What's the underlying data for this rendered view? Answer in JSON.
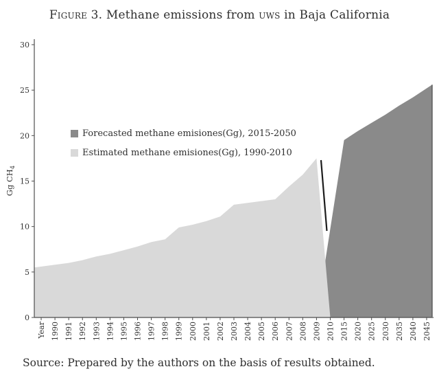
{
  "header": {
    "sc1": "Figure 3.",
    "mid": " Methane emissions from ",
    "sc2": "uws",
    "end": " in Baja California"
  },
  "source_note": "Source: Prepared by the authors on the basis of results obtained.",
  "legend": {
    "items": [
      {
        "label": "Forecasted methane emisiones(Gg), 2015-2050",
        "color": "#8a8a8a"
      },
      {
        "label": "Estimated methane emisiones(Gg), 1990-2010",
        "color": "#d9d9d9"
      }
    ]
  },
  "chart_data": {
    "type": "area",
    "title": "Figure 3. Methane emissions from UWS in Baja California",
    "xlabel": "Year",
    "ylabel": "Gg CH4",
    "ylabel_main": "Gg CH",
    "ylabel_sub": "4",
    "ylim": [
      0,
      30
    ],
    "y_ticks": [
      0,
      5,
      10,
      15,
      20,
      25,
      30
    ],
    "grid": false,
    "legend_position": "inside-left",
    "categories": [
      "Year",
      "1990",
      "1991",
      "1992",
      "1993",
      "1994",
      "1995",
      "1996",
      "1997",
      "1998",
      "1999",
      "2000",
      "2001",
      "2002",
      "2003",
      "2004",
      "2005",
      "2006",
      "2007",
      "2008",
      "2009",
      "2010",
      "2015",
      "2020",
      "2025",
      "2030",
      "2035",
      "2040",
      "2045"
    ],
    "series": [
      {
        "name": "Estimated methane emisiones(Gg), 1990-2010",
        "color": "#d9d9d9",
        "categories": [
          "1990",
          "1991",
          "1992",
          "1993",
          "1994",
          "1995",
          "1996",
          "1997",
          "1998",
          "1999",
          "2000",
          "2001",
          "2002",
          "2003",
          "2004",
          "2005",
          "2006",
          "2007",
          "2008",
          "2009",
          "2010"
        ],
        "values": [
          5.8,
          6.0,
          6.3,
          6.7,
          7.0,
          7.4,
          7.8,
          8.3,
          8.6,
          9.9,
          10.2,
          10.6,
          11.1,
          12.4,
          12.6,
          12.8,
          13.0,
          14.4,
          15.7,
          17.5,
          0
        ],
        "extend_to_plot_edge": "left",
        "right_border": false
      },
      {
        "name": "Forecasted methane emisiones(Gg), 2015-2050",
        "color": "#8a8a8a",
        "categories": [
          "2009",
          "2015",
          "2020",
          "2025",
          "2030",
          "2035",
          "2040",
          "2045"
        ],
        "values": [
          0,
          19.5,
          20.5,
          21.4,
          22.3,
          23.3,
          24.2,
          25.2
        ],
        "extend_to_plot_edge": "right",
        "right_border": true
      }
    ],
    "artifact_line": {
      "description": "thin black segment at the estimated/forecast transition (2009-2010)",
      "x1": 468,
      "y1": 233,
      "x2": 476.5,
      "y2": 336,
      "color": "#1c1c1c"
    }
  }
}
